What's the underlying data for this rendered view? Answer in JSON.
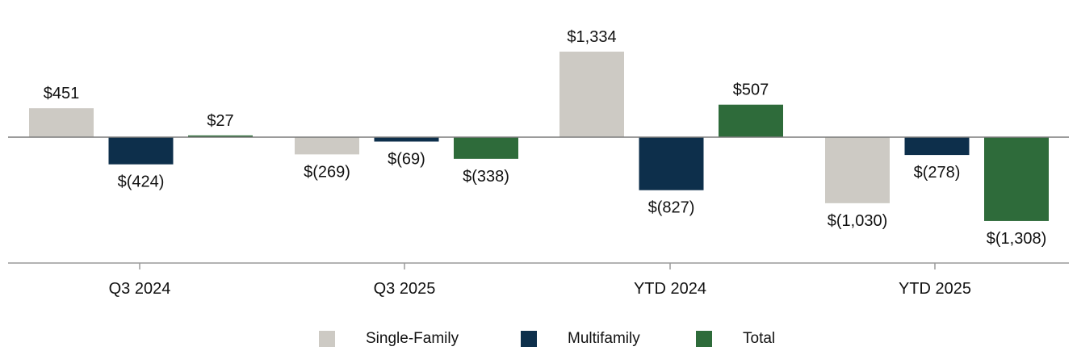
{
  "chart_data": {
    "type": "bar",
    "categories": [
      "Q3 2024",
      "Q3 2025",
      "YTD 2024",
      "YTD 2025"
    ],
    "series": [
      {
        "name": "Single-Family",
        "color": "#cdcac4",
        "values": [
          451,
          -269,
          1334,
          -1030
        ],
        "labels": [
          "$451",
          "$(269)",
          "$1,334",
          "$(1,030)"
        ]
      },
      {
        "name": "Multifamily",
        "color": "#0d2f4b",
        "values": [
          -424,
          -69,
          -827,
          -278
        ],
        "labels": [
          "$(424)",
          "$(69)",
          "$(827)",
          "$(278)"
        ]
      },
      {
        "name": "Total",
        "color": "#2e6b3a",
        "values": [
          27,
          -338,
          507,
          -1308
        ],
        "labels": [
          "$27",
          "$(338)",
          "$507",
          "$(1,308)"
        ]
      }
    ],
    "title": "",
    "xlabel": "",
    "ylabel": "",
    "legend_position": "bottom",
    "grid": false
  }
}
